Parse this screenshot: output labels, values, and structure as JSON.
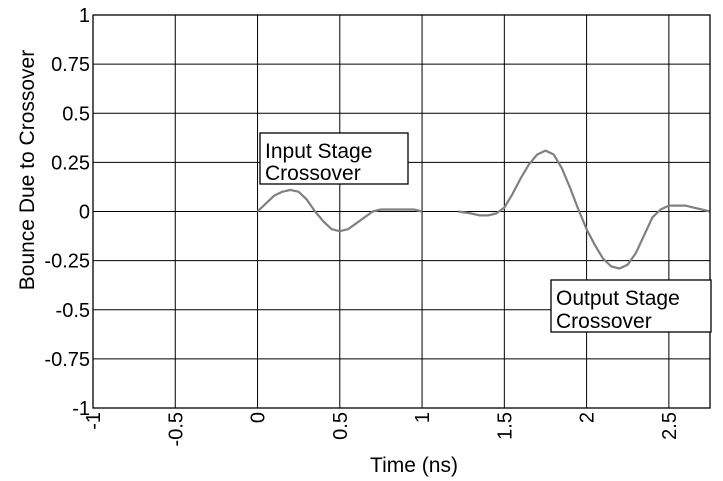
{
  "chart_data": {
    "type": "line",
    "title": "",
    "xlabel": "Time (ns)",
    "ylabel": "Bounce Due to Crossover",
    "xlim": [
      -1,
      2.75
    ],
    "ylim": [
      -1,
      1
    ],
    "x_ticks": [
      -1,
      -0.5,
      0,
      0.5,
      1,
      1.5,
      2,
      2.5
    ],
    "x_tick_labels": [
      "-1",
      "-0.5",
      "0",
      "0.5",
      "1",
      "1.5",
      "2",
      "2.5"
    ],
    "y_ticks": [
      1,
      0.75,
      0.5,
      0.25,
      0,
      -0.25,
      -0.5,
      -0.75,
      -1
    ],
    "y_tick_labels": [
      "1",
      "0.75",
      "0.5",
      "0.25",
      "0",
      "-0.25",
      "-0.5",
      "-0.75",
      "-1"
    ],
    "grid": true,
    "series": [
      {
        "color": "#808080",
        "x": [
          0,
          0.05,
          0.1,
          0.15,
          0.2,
          0.25,
          0.3,
          0.35,
          0.4,
          0.45,
          0.5,
          0.55,
          0.6,
          0.65,
          0.7,
          0.75,
          0.8,
          0.85,
          0.9,
          0.95,
          1.0
        ],
        "y": [
          0.0,
          0.04,
          0.08,
          0.1,
          0.11,
          0.1,
          0.06,
          0.0,
          -0.05,
          -0.09,
          -0.1,
          -0.09,
          -0.06,
          -0.03,
          0.0,
          0.01,
          0.01,
          0.01,
          0.01,
          0.01,
          0.0
        ]
      },
      {
        "color": "#808080",
        "x": [
          1.22,
          1.3,
          1.35,
          1.4,
          1.45,
          1.5,
          1.55,
          1.6,
          1.65,
          1.7,
          1.75,
          1.8,
          1.85,
          1.9,
          1.95,
          2.0,
          2.05,
          2.1,
          2.15,
          2.2,
          2.25,
          2.3,
          2.35,
          2.4,
          2.45,
          2.5,
          2.55,
          2.6,
          2.65,
          2.7,
          2.75
        ],
        "y": [
          0.0,
          -0.01,
          -0.02,
          -0.02,
          -0.01,
          0.02,
          0.09,
          0.17,
          0.24,
          0.29,
          0.31,
          0.29,
          0.22,
          0.12,
          0.01,
          -0.09,
          -0.17,
          -0.24,
          -0.28,
          -0.29,
          -0.27,
          -0.21,
          -0.12,
          -0.03,
          0.01,
          0.03,
          0.03,
          0.03,
          0.02,
          0.01,
          0.0
        ]
      }
    ],
    "annotations": [
      {
        "lines": [
          "Input Stage",
          "Crossover"
        ]
      },
      {
        "lines": [
          "Output Stage",
          "Crossover"
        ]
      }
    ]
  }
}
